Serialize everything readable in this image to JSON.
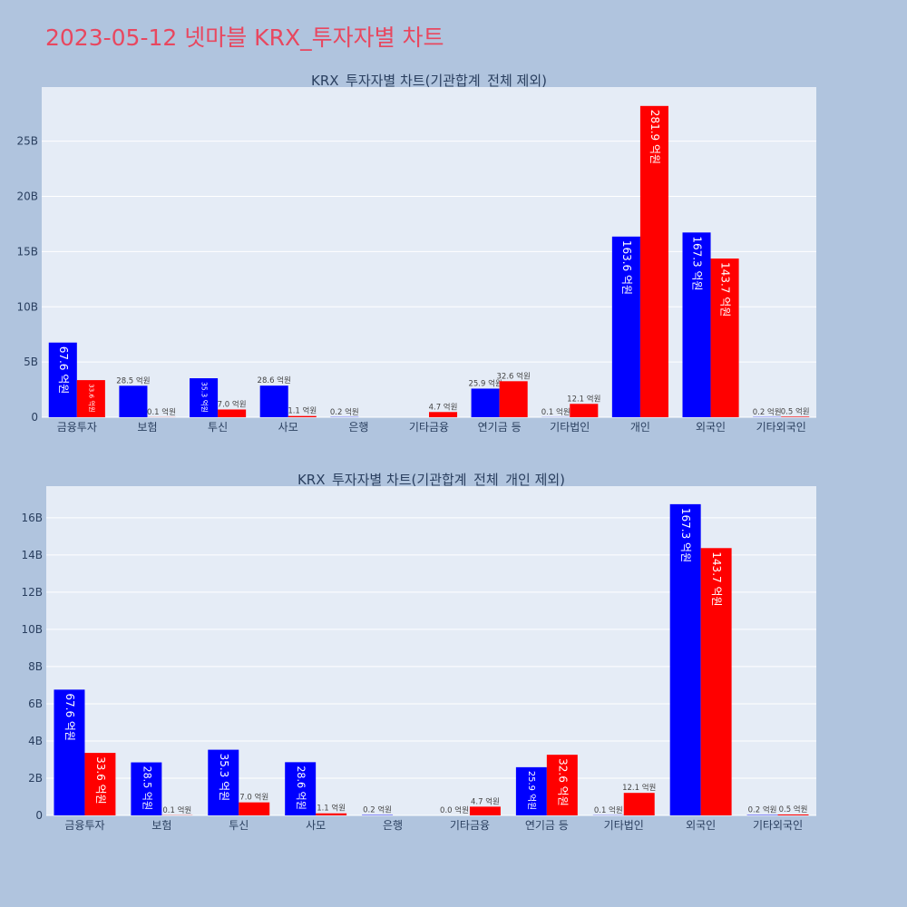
{
  "page": {
    "title": "2023-05-12 넷마블 KRX_투자자별 차트"
  },
  "colors": {
    "buy": "#0000ff",
    "sell": "#ff0000",
    "plot_bg": "#e5ecf6",
    "page_bg": "#b0c4de"
  },
  "chart_data": [
    {
      "type": "bar",
      "title": "KRX_투자자별 차트(기관합계_전체 제외)",
      "categories": [
        "금융투자",
        "보험",
        "투신",
        "사모",
        "은행",
        "기타금융",
        "연기금 등",
        "기타법인",
        "개인",
        "외국인",
        "기타외국인"
      ],
      "series": [
        {
          "values": [
            6760000000,
            2850000000,
            3530000000,
            2860000000,
            20000000,
            0,
            2590000000,
            10000000,
            16360000000,
            16730000000,
            20000000
          ],
          "labels": [
            "67.6 억원",
            "28.5 억원",
            "35.3 억원",
            "28.6 억원",
            "0.2 억원",
            "",
            "25.9 억원",
            "0.1 억원",
            "163.6 억원",
            "167.3 억원",
            "0.2 억원"
          ]
        },
        {
          "values": [
            3360000000,
            10000000,
            700000000,
            110000000,
            0,
            470000000,
            3260000000,
            1210000000,
            28190000000,
            14370000000,
            50000000
          ],
          "labels": [
            "33.6 억원",
            "0.1 억원",
            "7.0 억원",
            "1.1 억원",
            "",
            "4.7 억원",
            "32.6 억원",
            "12.1 억원",
            "281.9 억원",
            "143.7 억원",
            "0.5 억원"
          ]
        }
      ],
      "yticks": [
        0,
        5000000000,
        10000000000,
        15000000000,
        20000000000,
        25000000000
      ],
      "ytick_labels": [
        "0",
        "5B",
        "10B",
        "15B",
        "20B",
        "25B"
      ],
      "ylim": [
        0,
        29900000000
      ]
    },
    {
      "type": "bar",
      "title": "KRX_투자자별 차트(기관합계_전체_개인 제외)",
      "categories": [
        "금융투자",
        "보험",
        "투신",
        "사모",
        "은행",
        "기타금융",
        "연기금 등",
        "기타법인",
        "외국인",
        "기타외국인"
      ],
      "series": [
        {
          "values": [
            6760000000,
            2850000000,
            3530000000,
            2860000000,
            20000000,
            0,
            2590000000,
            10000000,
            16730000000,
            20000000
          ],
          "labels": [
            "67.6 억원",
            "28.5 억원",
            "35.3 억원",
            "28.6 억원",
            "0.2 억원",
            "0.0 억원",
            "25.9 억원",
            "0.1 억원",
            "167.3 억원",
            "0.2 억원"
          ]
        },
        {
          "values": [
            3360000000,
            10000000,
            700000000,
            110000000,
            0,
            470000000,
            3260000000,
            1210000000,
            14370000000,
            50000000
          ],
          "labels": [
            "33.6 억원",
            "0.1 억원",
            "7.0 억원",
            "1.1 억원",
            "",
            "4.7 억원",
            "32.6 억원",
            "12.1 억원",
            "143.7 억원",
            "0.5 억원"
          ]
        }
      ],
      "yticks": [
        0,
        2000000000,
        4000000000,
        6000000000,
        8000000000,
        10000000000,
        12000000000,
        14000000000,
        16000000000
      ],
      "ytick_labels": [
        "0",
        "2B",
        "4B",
        "6B",
        "8B",
        "10B",
        "12B",
        "14B",
        "16B"
      ],
      "ylim": [
        0,
        17700000000
      ]
    }
  ]
}
